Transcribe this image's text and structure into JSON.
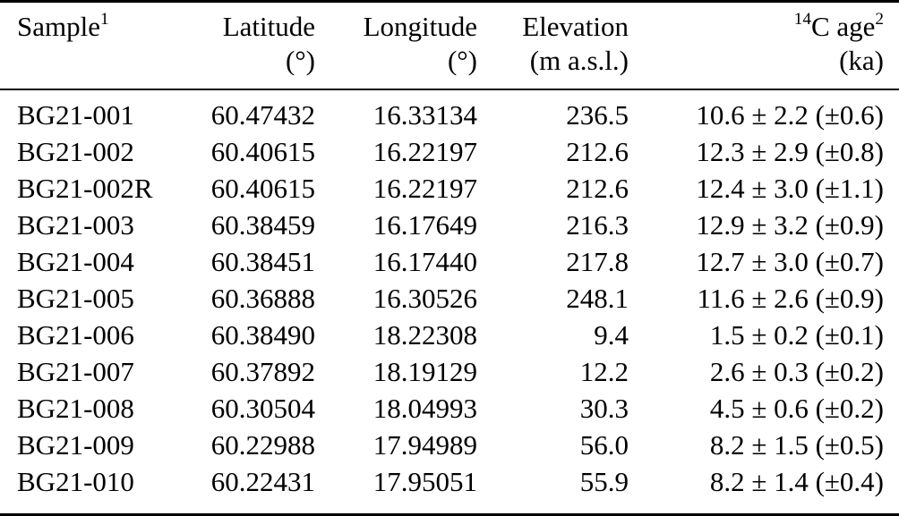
{
  "colors": {
    "text": "#000000",
    "background": "#ffffff",
    "rule": "#000000"
  },
  "table": {
    "keys": [
      "sample",
      "latitude",
      "longitude",
      "elevation",
      "c14_age"
    ],
    "columns": [
      {
        "label": "Sample",
        "sup": "1",
        "unit": ""
      },
      {
        "label": "Latitude",
        "unit": "(°)"
      },
      {
        "label": "Longitude",
        "unit": "(°)"
      },
      {
        "label": "Elevation",
        "unit": "(m a.s.l.)"
      },
      {
        "presup": "14",
        "label": "C age",
        "sup": "2",
        "unit": "(ka)"
      }
    ],
    "rows": [
      [
        "BG21-001",
        "60.47432",
        "16.33134",
        "236.5",
        "10.6 ± 2.2 (±0.6)"
      ],
      [
        "BG21-002",
        "60.40615",
        "16.22197",
        "212.6",
        "12.3 ± 2.9 (±0.8)"
      ],
      [
        "BG21-002R",
        "60.40615",
        "16.22197",
        "212.6",
        "12.4 ± 3.0 (±1.1)"
      ],
      [
        "BG21-003",
        "60.38459",
        "16.17649",
        "216.3",
        "12.9 ± 3.2 (±0.9)"
      ],
      [
        "BG21-004",
        "60.38451",
        "16.17440",
        "217.8",
        "12.7 ± 3.0 (±0.7)"
      ],
      [
        "BG21-005",
        "60.36888",
        "16.30526",
        "248.1",
        "11.6 ± 2.6 (±0.9)"
      ],
      [
        "BG21-006",
        "60.38490",
        "18.22308",
        "9.4",
        "1.5 ± 0.2 (±0.1)"
      ],
      [
        "BG21-007",
        "60.37892",
        "18.19129",
        "12.2",
        "2.6 ± 0.3 (±0.2)"
      ],
      [
        "BG21-008",
        "60.30504",
        "18.04993",
        "30.3",
        "4.5 ± 0.6 (±0.2)"
      ],
      [
        "BG21-009",
        "60.22988",
        "17.94989",
        "56.0",
        "8.2 ± 1.5 (±0.5)"
      ],
      [
        "BG21-010",
        "60.22431",
        "17.95051",
        "55.9",
        "8.2 ± 1.4 (±0.4)"
      ]
    ]
  }
}
